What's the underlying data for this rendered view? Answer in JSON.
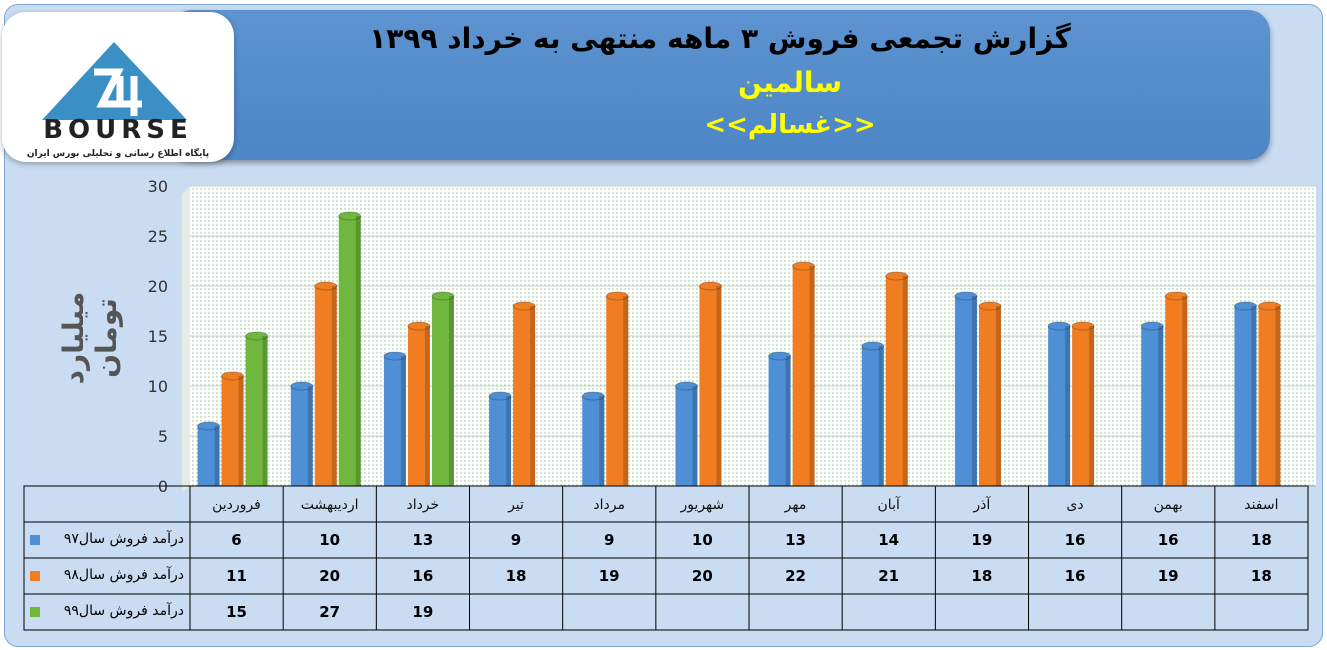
{
  "header": {
    "title": "گزارش تجمعی فروش ۳ ماهه منتهی به خرداد ۱۳۹۹",
    "company": "سالمین",
    "symbol": "<<غسالم>>"
  },
  "logo": {
    "wordmark": "BOURSE",
    "tagline": "پایگاه اطلاع رسانی و تحلیلی بورس ایران"
  },
  "colors": {
    "series97": "#4e8fd6",
    "series98": "#f07d22",
    "series99": "#70b73f",
    "banner": "#5390cf",
    "highlight_text": "#ffff00"
  },
  "chart_data": {
    "type": "bar",
    "title": "گزارش تجمعی فروش ۳ ماهه منتهی به خرداد ۱۳۹۹",
    "ylabel": "میلیارد تومان",
    "xlabel": "",
    "ylim": [
      0,
      30
    ],
    "yticks": [
      "0",
      "5",
      "10",
      "15",
      "20",
      "25",
      "30"
    ],
    "categories": [
      "فروردین",
      "اردیبهشت",
      "خرداد",
      "تیر",
      "مرداد",
      "شهریور",
      "مهر",
      "آبان",
      "آذر",
      "دی",
      "بهمن",
      "اسفند"
    ],
    "series": [
      {
        "name": "درآمد فروش سال۹۷",
        "values": [
          6,
          10,
          13,
          9,
          9,
          10,
          13,
          14,
          19,
          16,
          16,
          18
        ]
      },
      {
        "name": "درآمد فروش سال۹۸",
        "values": [
          11,
          20,
          16,
          18,
          19,
          20,
          22,
          21,
          18,
          16,
          19,
          18
        ]
      },
      {
        "name": "درآمد فروش سال۹۹",
        "values": [
          15,
          27,
          19,
          null,
          null,
          null,
          null,
          null,
          null,
          null,
          null,
          null
        ]
      }
    ],
    "grid": true,
    "data_table": true
  }
}
